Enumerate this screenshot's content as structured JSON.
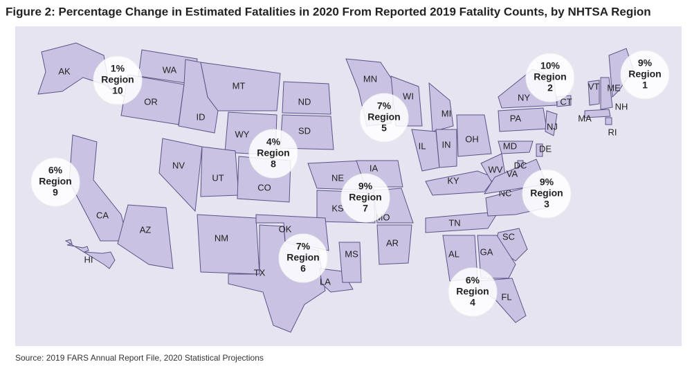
{
  "title": "Figure 2: Percentage Change in Estimated Fatalities in 2020 From Reported 2019 Fatality Counts, by NHTSA Region",
  "states": [
    "AK",
    "WA",
    "OR",
    "ID",
    "MT",
    "WY",
    "ND",
    "SD",
    "NE",
    "KS",
    "NV",
    "UT",
    "CO",
    "CA",
    "AZ",
    "NM",
    "TX",
    "OK",
    "LA",
    "AR",
    "MO",
    "IA",
    "MN",
    "WI",
    "MI",
    "IL",
    "IN",
    "OH",
    "KY",
    "TN",
    "NC",
    "SC",
    "GA",
    "AL",
    "MS",
    "FL",
    "WV",
    "VA",
    "MD",
    "DE",
    "DC",
    "PA",
    "NY",
    "NJ",
    "CT",
    "VT",
    "NH",
    "ME",
    "MA",
    "RI",
    "HI"
  ],
  "regions": [
    {
      "change": "9%",
      "label": "Region",
      "number": 1
    },
    {
      "change": "10%",
      "label": "Region",
      "number": 2
    },
    {
      "change": "9%",
      "label": "Region",
      "number": 3
    },
    {
      "change": "6%",
      "label": "Region",
      "number": 4
    },
    {
      "change": "7%",
      "label": "Region",
      "number": 5
    },
    {
      "change": "7%",
      "label": "Region",
      "number": 6
    },
    {
      "change": "9%",
      "label": "Region",
      "number": 7
    },
    {
      "change": "4%",
      "label": "Region",
      "number": 8
    },
    {
      "change": "6%",
      "label": "Region",
      "number": 9
    },
    {
      "change": "1%",
      "label": "Region",
      "number": 10
    }
  ],
  "source": "Source: 2019 FARS Annual Report File, 2020 Statistical Projections"
}
